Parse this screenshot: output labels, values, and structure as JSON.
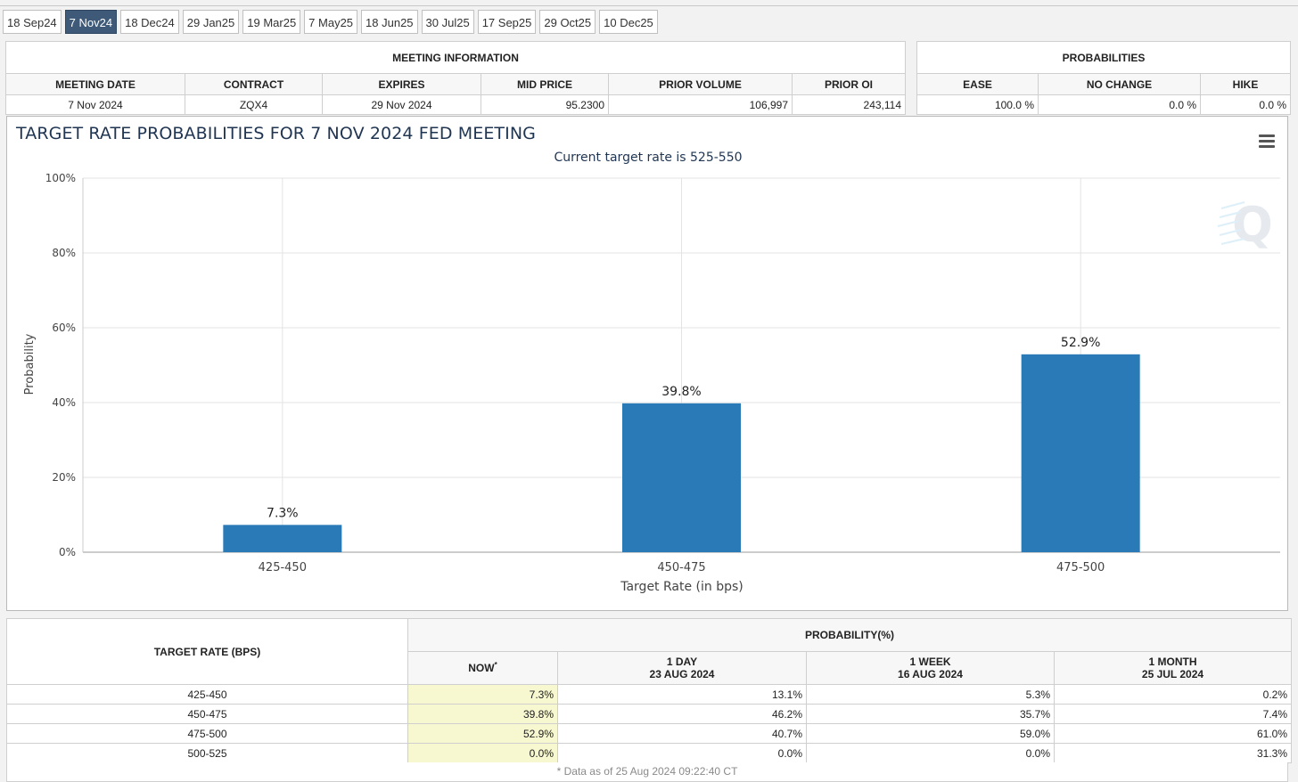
{
  "tabs": [
    "18 Sep24",
    "7 Nov24",
    "18 Dec24",
    "29 Jan25",
    "19 Mar25",
    "7 May25",
    "18 Jun25",
    "30 Jul25",
    "17 Sep25",
    "29 Oct25",
    "10 Dec25"
  ],
  "active_tab": "7 Nov24",
  "meeting_info": {
    "title": "MEETING INFORMATION",
    "headers": [
      "MEETING DATE",
      "CONTRACT",
      "EXPIRES",
      "MID PRICE",
      "PRIOR VOLUME",
      "PRIOR OI"
    ],
    "values": [
      "7 Nov 2024",
      "ZQX4",
      "29 Nov 2024",
      "95.2300",
      "106,997",
      "243,114"
    ]
  },
  "probabilities": {
    "title": "PROBABILITIES",
    "headers": [
      "EASE",
      "NO CHANGE",
      "HIKE"
    ],
    "values": [
      "100.0 %",
      "0.0 %",
      "0.0 %"
    ]
  },
  "chart": {
    "menu_icon": "hamburger-menu-icon",
    "watermark_icon": "cme-q-logo-icon",
    "bar_color": "#2a7ab8"
  },
  "chart_data": {
    "type": "bar",
    "title": "TARGET RATE PROBABILITIES FOR 7 NOV 2024 FED MEETING",
    "subtitle": "Current target rate is 525-550",
    "categories": [
      "425-450",
      "450-475",
      "475-500"
    ],
    "values": [
      7.3,
      39.8,
      52.9
    ],
    "data_labels": [
      "7.3%",
      "39.8%",
      "52.9%"
    ],
    "xlabel": "Target Rate (in bps)",
    "ylabel": "Probability",
    "ylim": [
      0,
      100
    ],
    "yticks": [
      "0%",
      "20%",
      "40%",
      "60%",
      "80%",
      "100%"
    ],
    "grid": true
  },
  "prob_table": {
    "target_header": "TARGET RATE (BPS)",
    "prob_header": "PROBABILITY(%)",
    "columns": [
      {
        "line1": "NOW",
        "sup": "*",
        "line2": ""
      },
      {
        "line1": "1 DAY",
        "sup": "",
        "line2": "23 AUG 2024"
      },
      {
        "line1": "1 WEEK",
        "sup": "",
        "line2": "16 AUG 2024"
      },
      {
        "line1": "1 MONTH",
        "sup": "",
        "line2": "25 JUL 2024"
      }
    ],
    "rows": [
      {
        "rate": "425-450",
        "values": [
          "7.3%",
          "13.1%",
          "5.3%",
          "0.2%"
        ]
      },
      {
        "rate": "450-475",
        "values": [
          "39.8%",
          "46.2%",
          "35.7%",
          "7.4%"
        ]
      },
      {
        "rate": "475-500",
        "values": [
          "52.9%",
          "40.7%",
          "59.0%",
          "61.0%"
        ]
      },
      {
        "rate": "500-525",
        "values": [
          "0.0%",
          "0.0%",
          "0.0%",
          "31.3%"
        ]
      }
    ],
    "footnote": "* Data as of 25 Aug 2024 09:22:40 CT"
  }
}
